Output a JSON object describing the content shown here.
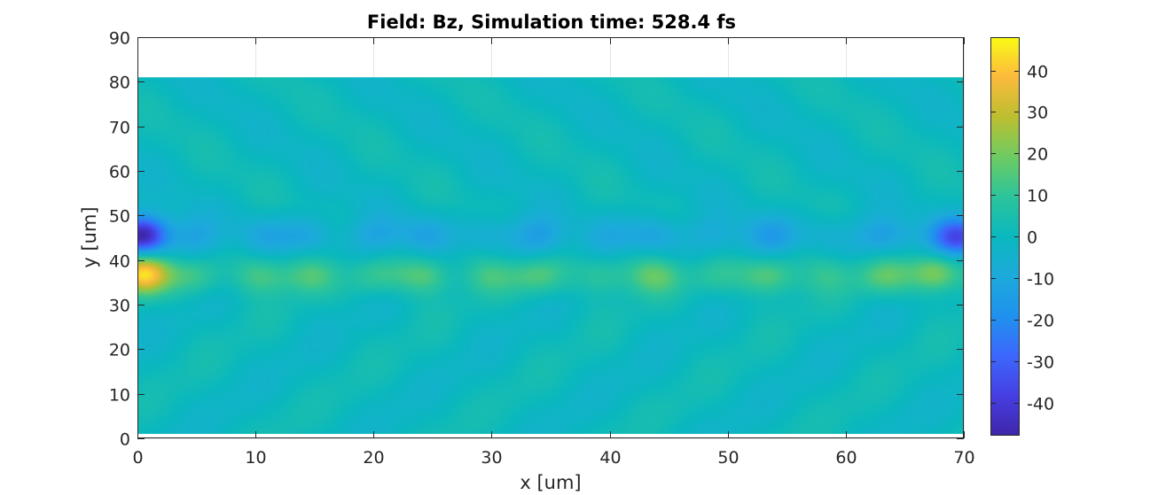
{
  "chart_data": {
    "type": "heatmap",
    "title": "Field: Bz, Simulation time: 528.4 fs",
    "xlabel": "x [um]",
    "ylabel": "y [um]",
    "xlim": [
      0,
      70
    ],
    "ylim": [
      0,
      90
    ],
    "x_ticks": [
      "0",
      "10",
      "20",
      "30",
      "40",
      "50",
      "60",
      "70"
    ],
    "y_ticks": [
      "0",
      "10",
      "20",
      "30",
      "40",
      "50",
      "60",
      "70",
      "80",
      "90"
    ],
    "field_extent": {
      "x": [
        0,
        70
      ],
      "y": [
        1,
        81
      ]
    },
    "grid": true,
    "colormap": "parula",
    "colorbar": {
      "clim": [
        -48,
        48
      ],
      "ticks": [
        "-40",
        "-30",
        "-20",
        "-10",
        "0",
        "10",
        "20",
        "30",
        "40"
      ]
    },
    "background_value": 0,
    "features": [
      {
        "name": "upper channel band",
        "y_center": 45.5,
        "y_halfwidth": 3.2,
        "value": -9
      },
      {
        "name": "lower channel band",
        "y_center": 36.5,
        "y_halfwidth": 3.0,
        "value": 11
      },
      {
        "name": "left-edge upper spot",
        "x": 0.4,
        "y": 45.5,
        "value": -38
      },
      {
        "name": "left-edge lower spot",
        "x": 0.4,
        "y": 37,
        "value": 30
      },
      {
        "name": "right-edge upper spot",
        "x": 69.5,
        "y": 45,
        "value": -30
      },
      {
        "name": "right-edge lower spot",
        "x": 67.5,
        "y": 37.5,
        "value": 14
      }
    ]
  }
}
